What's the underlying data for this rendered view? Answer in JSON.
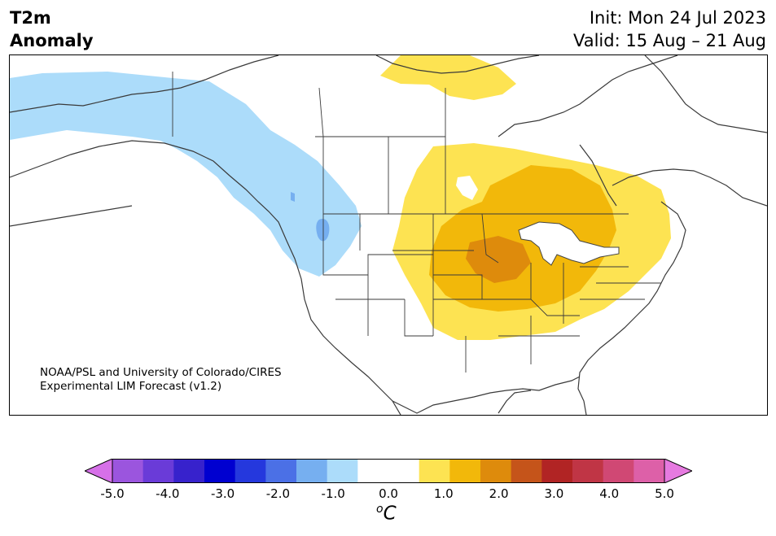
{
  "header": {
    "variable": "T2m",
    "kind": "Anomaly",
    "init": "Init: Mon 24 Jul 2023",
    "valid": "Valid: 15 Aug – 21 Aug"
  },
  "credit": {
    "line1": "NOAA/PSL and University of Colorado/CIRES",
    "line2": "Experimental LIM Forecast (v1.2)"
  },
  "colorbar": {
    "unit_base": "C",
    "unit_sup": "o",
    "ticks": [
      "-5.0",
      "-4.0",
      "-3.0",
      "-2.0",
      "-1.0",
      "0.0",
      "1.0",
      "2.0",
      "3.0",
      "4.0",
      "5.0"
    ],
    "colors": [
      "#d670e8",
      "#9b55de",
      "#6a3bd8",
      "#3722cc",
      "#0000d0",
      "#2538dd",
      "#4b70e6",
      "#76aff0",
      "#acdcfa",
      "#ffffff",
      "#ffffff",
      "#fde352",
      "#f2b80a",
      "#de8b0c",
      "#c5541a",
      "#b12424",
      "#c03545",
      "#d04874",
      "#dd60a8",
      "#e67ae0"
    ]
  },
  "map": {
    "region": "North America",
    "anomaly_areas": [
      {
        "name": "Pacific Northwest / Alaska cool anomaly",
        "range": "-1.0 to -0.5",
        "color": "#acdcfa"
      },
      {
        "name": "Central US / Great Lakes warm anomaly",
        "range": "0.5 to 1.0",
        "color": "#fde352"
      },
      {
        "name": "Upper Midwest core warm anomaly",
        "range": "1.0 to 1.5",
        "color": "#f2b80a"
      },
      {
        "name": "Iowa warm peak",
        "range": "1.5 to 2.0",
        "color": "#de8b0c"
      },
      {
        "name": "Arctic archipelago warm anomaly",
        "range": "0.5 to 1.0",
        "color": "#fde352"
      }
    ]
  }
}
